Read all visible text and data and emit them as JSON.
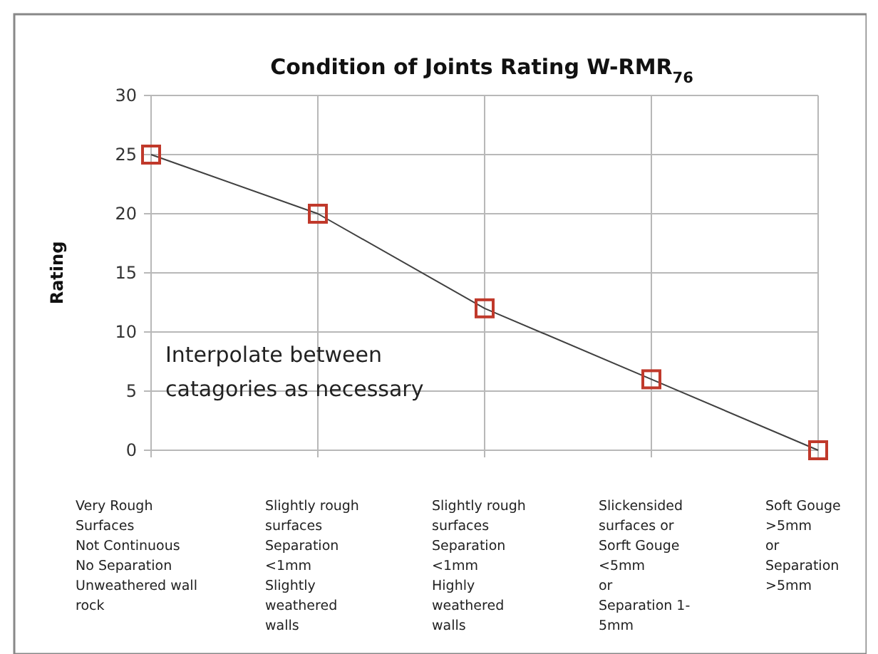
{
  "chart_data": {
    "type": "line",
    "title": "Condition of Joints Rating W-RMR$_{76}$",
    "ylabel": "Rating",
    "categories": [
      "Very Rough\nSurfaces\nNot Continuous\nNo Separation\nUnweathered wall\nrock",
      "Slightly rough\nsurfaces\nSeparation\n<1mm\nSlightly\nweathered\nwalls",
      "Slightly rough\nsurfaces\nSeparation\n<1mm\nHighly\nweathered\nwalls",
      "Slickensided\nsurfaces or\nSorft Gouge\n<5mm\nor\nSeparation 1-\n5mm",
      "Soft Gouge\n>5mm\nor\nSeparation\n>5mm"
    ],
    "series": [
      {
        "color": "#c0392b",
        "values": [
          25,
          20,
          12,
          6,
          0
        ]
      }
    ],
    "ylim": [
      0,
      30
    ],
    "yticks": [
      0,
      5,
      10,
      15,
      20,
      25,
      30
    ],
    "grid": true,
    "marker": "square",
    "line_style": "solid",
    "annotations": [
      "Interpolate between\ncatagories as necessary"
    ]
  }
}
